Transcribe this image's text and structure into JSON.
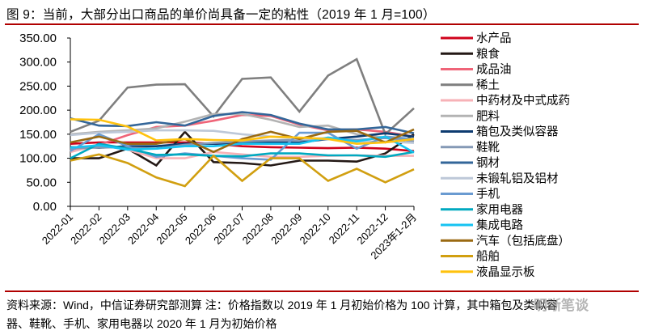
{
  "title": "图 9：当前，大部分出口商品的单价尚具备一定的粘性（2019 年 1 月=100）",
  "footer": {
    "line1": "资料来源：Wind，中信证券研究部测算 注：价格指数以 2019 年 1 月初始价格为 100 计算，其中箱包及类似容",
    "line2": "器、鞋靴、手机、家用电器以 2020 年 1 月为初始价格",
    "watermark": "明晰笔谈"
  },
  "chart_data": {
    "type": "line",
    "title": "当前，大部分出口商品的单价尚具备一定的粘性（2019 年 1 月=100）",
    "xlabel": "",
    "ylabel": "",
    "ylim": [
      0,
      350
    ],
    "yticks": [
      "0.00",
      "50.00",
      "100.00",
      "150.00",
      "200.00",
      "250.00",
      "300.00",
      "350.00"
    ],
    "ytick_values": [
      0,
      50,
      100,
      150,
      200,
      250,
      300,
      350
    ],
    "categories": [
      "2022-01",
      "2022-02",
      "2022-03",
      "2022-04",
      "2022-05",
      "2022-06",
      "2022-07",
      "2022-08",
      "2022-09",
      "2022-10",
      "2022-11",
      "2022-12",
      "2023年1-2月"
    ],
    "grid": false,
    "legend_position": "right",
    "series": [
      {
        "name": "水产品",
        "color": "#d0021b",
        "values": [
          130,
          133,
          133,
          133,
          133,
          130,
          125,
          123,
          122,
          121,
          122,
          120,
          115
        ]
      },
      {
        "name": "粮食",
        "color": "#231815",
        "values": [
          100,
          100,
          120,
          85,
          155,
          92,
          90,
          85,
          95,
          95,
          93,
          110,
          150
        ]
      },
      {
        "name": "成品油",
        "color": "#ef6478",
        "values": [
          118,
          128,
          148,
          165,
          168,
          178,
          190,
          188,
          170,
          158,
          160,
          155,
          145
        ]
      },
      {
        "name": "稀土",
        "color": "#7f7f7f",
        "values": [
          155,
          178,
          247,
          253,
          254,
          187,
          265,
          268,
          197,
          272,
          306,
          150,
          204
        ]
      },
      {
        "name": "中药材及中式成药",
        "color": "#f7b2b7",
        "values": [
          113,
          127,
          118,
          100,
          100,
          113,
          108,
          103,
          103,
          105,
          106,
          105,
          105
        ]
      },
      {
        "name": "肥料",
        "color": "#b3b3b3",
        "values": [
          150,
          155,
          158,
          162,
          176,
          192,
          192,
          180,
          165,
          168,
          150,
          143,
          140
        ]
      },
      {
        "name": "箱包及类似容器",
        "color": "#0d3b70",
        "values": [
          123,
          122,
          125,
          125,
          130,
          130,
          132,
          133,
          133,
          140,
          145,
          152,
          145
        ]
      },
      {
        "name": "鞋靴",
        "color": "#8499b5",
        "values": [
          120,
          123,
          122,
          120,
          128,
          132,
          135,
          137,
          138,
          140,
          138,
          142,
          135
        ]
      },
      {
        "name": "钢材",
        "color": "#336699",
        "values": [
          183,
          168,
          167,
          175,
          168,
          188,
          196,
          190,
          172,
          160,
          160,
          165,
          152
        ]
      },
      {
        "name": "未锻轧铝及铝材",
        "color": "#bdc8d8",
        "values": [
          148,
          153,
          155,
          158,
          158,
          157,
          150,
          145,
          140,
          142,
          135,
          135,
          132
        ]
      },
      {
        "name": "手机",
        "color": "#6a9bd1",
        "values": [
          115,
          150,
          125,
          103,
          110,
          105,
          100,
          97,
          153,
          153,
          120,
          145,
          140
        ]
      },
      {
        "name": "家用电器",
        "color": "#00a9c0",
        "values": [
          100,
          130,
          120,
          107,
          108,
          105,
          104,
          110,
          110,
          106,
          106,
          103,
          113
        ]
      },
      {
        "name": "集成电路",
        "color": "#16c3f2",
        "values": [
          122,
          127,
          118,
          120,
          125,
          125,
          130,
          130,
          130,
          143,
          135,
          145,
          112
        ]
      },
      {
        "name": "汽车（包括底盘）",
        "color": "#9a6a12",
        "values": [
          133,
          145,
          130,
          130,
          140,
          113,
          140,
          155,
          140,
          155,
          157,
          133,
          160
        ]
      },
      {
        "name": "船舶",
        "color": "#d19f10",
        "values": [
          95,
          108,
          90,
          60,
          42,
          105,
          53,
          100,
          100,
          53,
          78,
          50,
          77
        ]
      },
      {
        "name": "液晶显示板",
        "color": "#ffc20e",
        "values": [
          181,
          180,
          166,
          137,
          140,
          138,
          137,
          145,
          143,
          140,
          130,
          133,
          140
        ]
      }
    ]
  }
}
